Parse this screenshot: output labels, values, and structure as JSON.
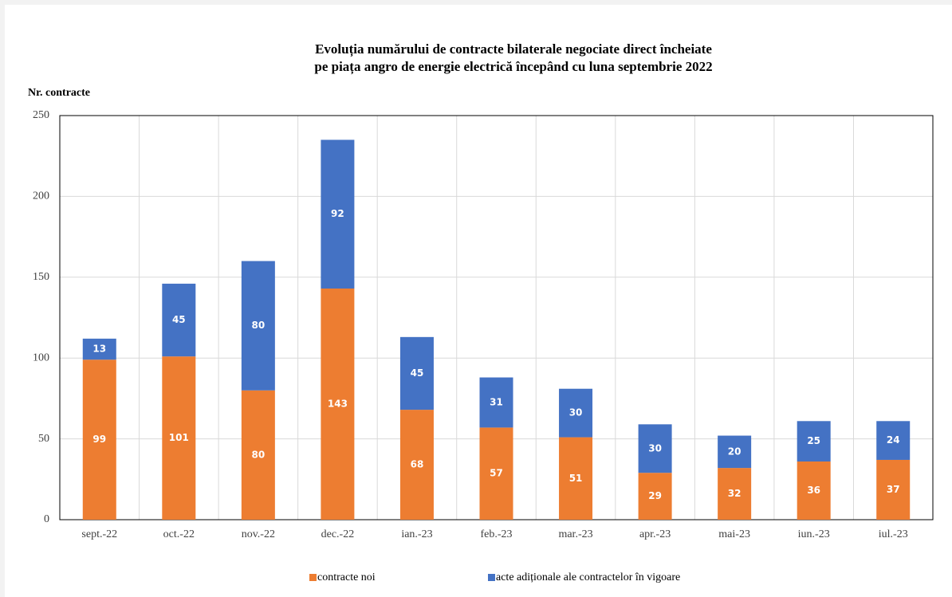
{
  "chart_data": {
    "type": "bar",
    "stacked": true,
    "title": [
      "Evoluția numărului de contracte bilaterale negociate direct încheiate",
      "pe piața angro de energie electrică începând cu luna septembrie 2022"
    ],
    "ylabel": "Nr. contracte",
    "categories": [
      "sept.-22",
      "oct.-22",
      "nov.-22",
      "dec.-22",
      "ian.-23",
      "feb.-23",
      "mar.-23",
      "apr.-23",
      "mai-23",
      "iun.-23",
      "iul.-23"
    ],
    "series": [
      {
        "name": "contracte noi",
        "color": "#ed7d31",
        "values": [
          99,
          101,
          80,
          143,
          68,
          57,
          51,
          29,
          32,
          36,
          37
        ]
      },
      {
        "name": "acte adiționale ale contractelor în vigoare",
        "color": "#4472c4",
        "values": [
          13,
          45,
          80,
          92,
          45,
          31,
          30,
          30,
          20,
          25,
          24
        ]
      }
    ],
    "ylim": [
      0,
      250
    ],
    "yticks": [
      0,
      50,
      100,
      150,
      200,
      250
    ],
    "grid": true,
    "legend": "bottom"
  }
}
